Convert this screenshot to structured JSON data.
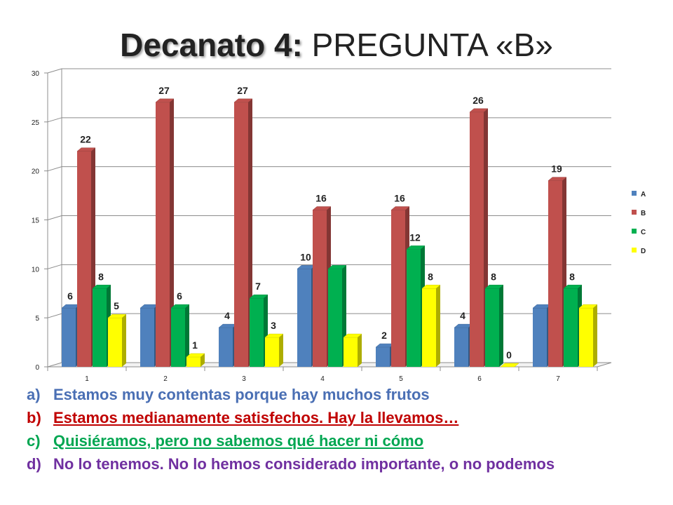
{
  "title": {
    "bold": "Decanato 4:",
    "rest": "PREGUNTA «B»"
  },
  "chart_data": {
    "type": "bar",
    "categories": [
      "1",
      "2",
      "3",
      "4",
      "5",
      "6",
      "7"
    ],
    "series": [
      {
        "name": "A",
        "color": "#4f81bd",
        "values": [
          6,
          6,
          4,
          10,
          2,
          4,
          6
        ]
      },
      {
        "name": "B",
        "color": "#c0504d",
        "values": [
          22,
          27,
          27,
          16,
          16,
          26,
          19
        ]
      },
      {
        "name": "C",
        "color": "#00b050",
        "values": [
          8,
          6,
          7,
          10,
          12,
          8,
          8
        ]
      },
      {
        "name": "D",
        "color": "#ffff00",
        "values": [
          5,
          1,
          3,
          3,
          8,
          0,
          6
        ]
      }
    ],
    "ylim": [
      0,
      30
    ],
    "yticks": [
      0,
      5,
      10,
      15,
      20,
      25,
      30
    ],
    "grid": true,
    "legend": "right",
    "style": "3d-clustered-column",
    "data_labels": true,
    "hidden_labels": [
      "1-0",
      "3-2",
      "3-3",
      "6-0",
      "6-3"
    ]
  },
  "answers": [
    {
      "letter": "a)",
      "text": "Estamos muy contentas porque hay muchos frutos",
      "color": "#4a6fb4"
    },
    {
      "letter": "b)",
      "text": "Estamos medianamente satisfechos. Hay la llevamos…",
      "color": "#c00000"
    },
    {
      "letter": "c)",
      "text": "Quisiéramos, pero no sabemos qué hacer ni cómo",
      "color": "#00a651"
    },
    {
      "letter": "d)",
      "text": "No lo tenemos. No lo hemos considerado importante, o no podemos",
      "color": "#7030a0"
    }
  ]
}
